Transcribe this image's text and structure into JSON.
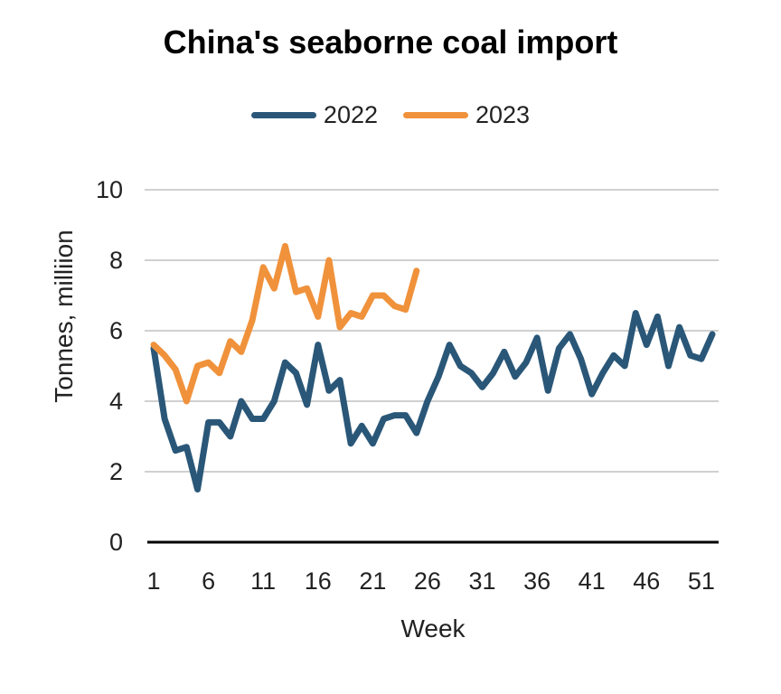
{
  "chart_data": {
    "type": "line",
    "title": "China's seaborne coal import",
    "xlabel": "Week",
    "ylabel": "Tonnes, milliion",
    "ylim": [
      0,
      10
    ],
    "xlim": [
      1,
      52
    ],
    "yticks": [
      0,
      2,
      4,
      6,
      8,
      10
    ],
    "xticks": [
      1,
      6,
      11,
      16,
      21,
      26,
      31,
      36,
      41,
      46,
      51
    ],
    "grid": true,
    "legend_position": "top-center",
    "series": [
      {
        "name": "2022",
        "color": "#2a5778",
        "x": [
          1,
          2,
          3,
          4,
          5,
          6,
          7,
          8,
          9,
          10,
          11,
          12,
          13,
          14,
          15,
          16,
          17,
          18,
          19,
          20,
          21,
          22,
          23,
          24,
          25,
          26,
          27,
          28,
          29,
          30,
          31,
          32,
          33,
          34,
          35,
          36,
          37,
          38,
          39,
          40,
          41,
          42,
          43,
          44,
          45,
          46,
          47,
          48,
          49,
          50,
          51,
          52
        ],
        "values": [
          5.5,
          3.5,
          2.6,
          2.7,
          1.5,
          3.4,
          3.4,
          3.0,
          4.0,
          3.5,
          3.5,
          4.0,
          5.1,
          4.8,
          3.9,
          5.6,
          4.3,
          4.6,
          2.8,
          3.3,
          2.8,
          3.5,
          3.6,
          3.6,
          3.1,
          4.0,
          4.7,
          5.6,
          5.0,
          4.8,
          4.4,
          4.8,
          5.4,
          4.7,
          5.1,
          5.8,
          4.3,
          5.5,
          5.9,
          5.2,
          4.2,
          4.8,
          5.3,
          5.0,
          6.5,
          5.6,
          6.4,
          5.0,
          6.1,
          5.3,
          5.2,
          5.9
        ]
      },
      {
        "name": "2023",
        "color": "#f0923b",
        "x": [
          1,
          2,
          3,
          4,
          5,
          6,
          7,
          8,
          9,
          10,
          11,
          12,
          13,
          14,
          15,
          16,
          17,
          18,
          19,
          20,
          21,
          22,
          23,
          24,
          25
        ],
        "values": [
          5.6,
          5.3,
          4.9,
          4.0,
          5.0,
          5.1,
          4.8,
          5.7,
          5.4,
          6.3,
          7.8,
          7.2,
          8.4,
          7.1,
          7.2,
          6.4,
          8.0,
          6.1,
          6.5,
          6.4,
          7.0,
          7.0,
          6.7,
          6.6,
          7.7
        ]
      }
    ]
  }
}
